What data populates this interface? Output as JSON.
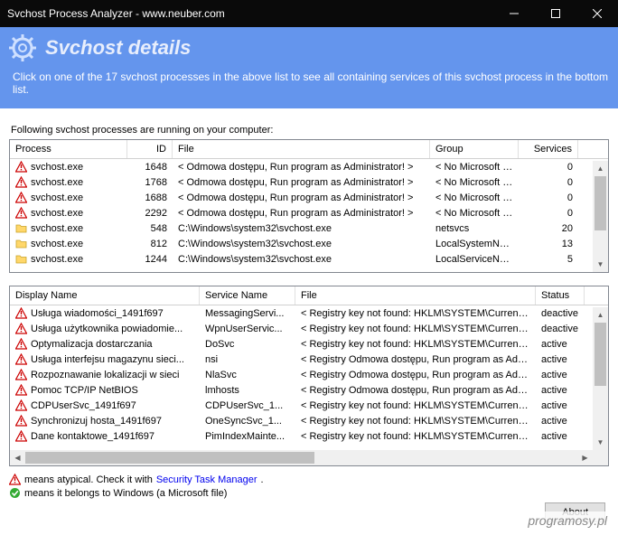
{
  "window": {
    "title": "Svchost Process Analyzer - www.neuber.com"
  },
  "header": {
    "title": "Svchost details",
    "hint": "Click on one of the 17 svchost processes in the above list to see all containing services of this svchost process in the bottom list."
  },
  "topGrid": {
    "label": "Following svchost processes are running on your computer:",
    "columns": {
      "process": "Process",
      "id": "ID",
      "file": "File",
      "group": "Group",
      "services": "Services"
    },
    "colWidths": {
      "process": 130,
      "id": 50,
      "file": 285,
      "group": 98,
      "services": 66
    },
    "rows": [
      {
        "icon": "warn",
        "process": "svchost.exe",
        "id": "1648",
        "file": "< Odmowa dostępu, Run program as Administrator! >",
        "group": "< No Microsoft fil...",
        "services": "0"
      },
      {
        "icon": "warn",
        "process": "svchost.exe",
        "id": "1768",
        "file": "< Odmowa dostępu, Run program as Administrator! >",
        "group": "< No Microsoft fil...",
        "services": "0"
      },
      {
        "icon": "warn",
        "process": "svchost.exe",
        "id": "1688",
        "file": "< Odmowa dostępu, Run program as Administrator! >",
        "group": "< No Microsoft fil...",
        "services": "0"
      },
      {
        "icon": "warn",
        "process": "svchost.exe",
        "id": "2292",
        "file": "< Odmowa dostępu, Run program as Administrator! >",
        "group": "< No Microsoft fil...",
        "services": "0"
      },
      {
        "icon": "folder",
        "process": "svchost.exe",
        "id": "548",
        "file": "C:\\Windows\\system32\\svchost.exe",
        "group": "netsvcs",
        "services": "20"
      },
      {
        "icon": "folder",
        "process": "svchost.exe",
        "id": "812",
        "file": "C:\\Windows\\system32\\svchost.exe",
        "group": "LocalSystemNet...",
        "services": "13"
      },
      {
        "icon": "folder",
        "process": "svchost.exe",
        "id": "1244",
        "file": "C:\\Windows\\system32\\svchost.exe",
        "group": "LocalServiceNo...",
        "services": "5"
      }
    ]
  },
  "bottomGrid": {
    "columns": {
      "display": "Display Name",
      "service": "Service Name",
      "file": "File",
      "status": "Status"
    },
    "colWidths": {
      "display": 210,
      "service": 106,
      "file": 266,
      "status": 54
    },
    "rows": [
      {
        "icon": "warn",
        "display": "Usługa wiadomości_1491f697",
        "service": "MessagingServi...",
        "file": "< Registry key not found: HKLM\\SYSTEM\\CurrentContr...",
        "status": "deactive"
      },
      {
        "icon": "warn",
        "display": "Usługa użytkownika powiadomie...",
        "service": "WpnUserServic...",
        "file": "< Registry key not found: HKLM\\SYSTEM\\CurrentContr...",
        "status": "deactive"
      },
      {
        "icon": "warn",
        "display": "Optymalizacja dostarczania",
        "service": "DoSvc",
        "file": "< Registry key not found: HKLM\\SYSTEM\\CurrentContr...",
        "status": "active"
      },
      {
        "icon": "warn",
        "display": "Usługa interfejsu magazynu sieci...",
        "service": "nsi",
        "file": "< Registry Odmowa dostępu, Run program as Administrat...",
        "status": "active"
      },
      {
        "icon": "warn",
        "display": "Rozpoznawanie lokalizacji w sieci",
        "service": "NlaSvc",
        "file": "< Registry Odmowa dostępu, Run program as Administrat...",
        "status": "active"
      },
      {
        "icon": "warn",
        "display": "Pomoc TCP/IP NetBIOS",
        "service": "lmhosts",
        "file": "< Registry Odmowa dostępu, Run program as Administrat...",
        "status": "active"
      },
      {
        "icon": "warn",
        "display": "CDPUserSvc_1491f697",
        "service": "CDPUserSvc_1...",
        "file": "< Registry key not found: HKLM\\SYSTEM\\CurrentContr...",
        "status": "active"
      },
      {
        "icon": "warn",
        "display": "Synchronizuj hosta_1491f697",
        "service": "OneSyncSvc_1...",
        "file": "< Registry key not found: HKLM\\SYSTEM\\CurrentContr...",
        "status": "active"
      },
      {
        "icon": "warn",
        "display": "Dane kontaktowe_1491f697",
        "service": "PimIndexMainte...",
        "file": "< Registry key not found: HKLM\\SYSTEM\\CurrentContr...",
        "status": "active"
      }
    ]
  },
  "legend": {
    "atypical_pre": "means atypical. Check it with ",
    "atypical_link": "Security Task Manager",
    "windows": "means it belongs to Windows (a Microsoft file)"
  },
  "aboutBtn": "About",
  "watermark": "programosy.pl"
}
